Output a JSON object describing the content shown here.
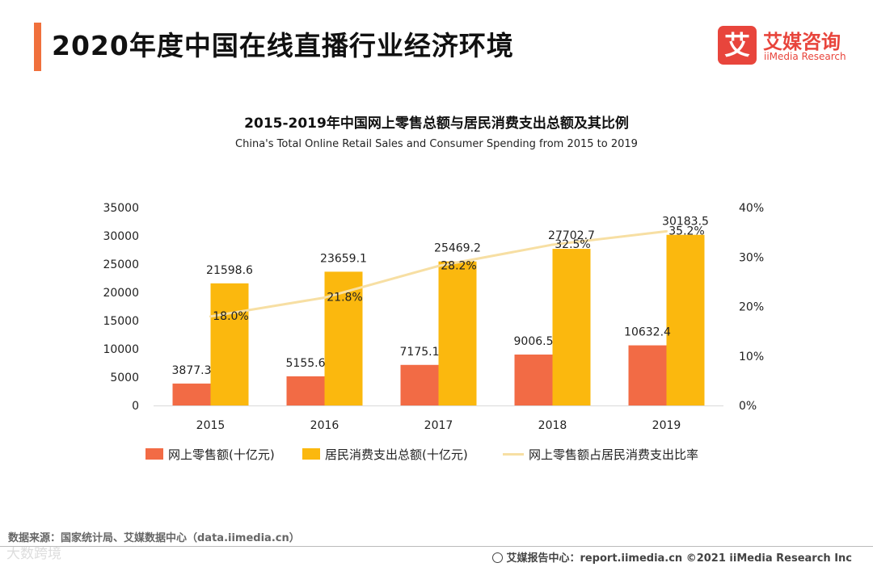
{
  "header": {
    "title": "2020年度中国在线直播行业经济环境",
    "logo_mark": "艾",
    "logo_cn": "艾媒咨询",
    "logo_en": "iiMedia Research"
  },
  "colors": {
    "accent": "#f0703c",
    "online_retail": "#f26b45",
    "consumer_spending": "#fbb80e",
    "ratio_line": "#f7dfa3",
    "logo": "#e8453c"
  },
  "chart_data": {
    "type": "bar",
    "title": "2015-2019年中国网上零售总额与居民消费支出总额及其比例",
    "subtitle": "China's Total Online Retail Sales and Consumer Spending from 2015 to 2019",
    "categories": [
      "2015",
      "2016",
      "2017",
      "2018",
      "2019"
    ],
    "series": [
      {
        "name": "网上零售额(十亿元)",
        "type": "bar",
        "axis": "left",
        "values": [
          3877.3,
          5155.6,
          7175.1,
          9006.5,
          10632.4
        ],
        "labels": [
          "3877.3",
          "5155.6",
          "7175.1",
          "9006.5",
          "10632.4"
        ]
      },
      {
        "name": "居民消费支出总额(十亿元)",
        "type": "bar",
        "axis": "right_bars",
        "values": [
          21598.6,
          23659.1,
          25469.2,
          27702.7,
          30183.5
        ],
        "labels": [
          "21598.6",
          "23659.1",
          "25469.2",
          "27702.7",
          "30183.5"
        ]
      },
      {
        "name": "网上零售额占居民消费支出比率",
        "type": "line",
        "axis": "right",
        "values": [
          18.0,
          21.8,
          28.2,
          32.5,
          35.2
        ],
        "labels": [
          "18.0%",
          "21.8%",
          "28.2%",
          "32.5%",
          "35.2%"
        ]
      }
    ],
    "ylim": [
      0,
      35000
    ],
    "yticks": [
      "0",
      "5000",
      "10000",
      "15000",
      "20000",
      "25000",
      "30000",
      "35000"
    ],
    "y2lim": [
      0,
      40
    ],
    "y2ticks": [
      "0%",
      "10%",
      "20%",
      "30%",
      "40%"
    ],
    "grid": false,
    "legend_position": "bottom"
  },
  "source_text": "数据来源：国家统计局、艾媒数据中心（data.iimedia.cn）",
  "footer_text": "艾媒报告中心：report.iimedia.cn   ©2021  iiMedia Research  Inc",
  "watermark_text": "大数跨境"
}
